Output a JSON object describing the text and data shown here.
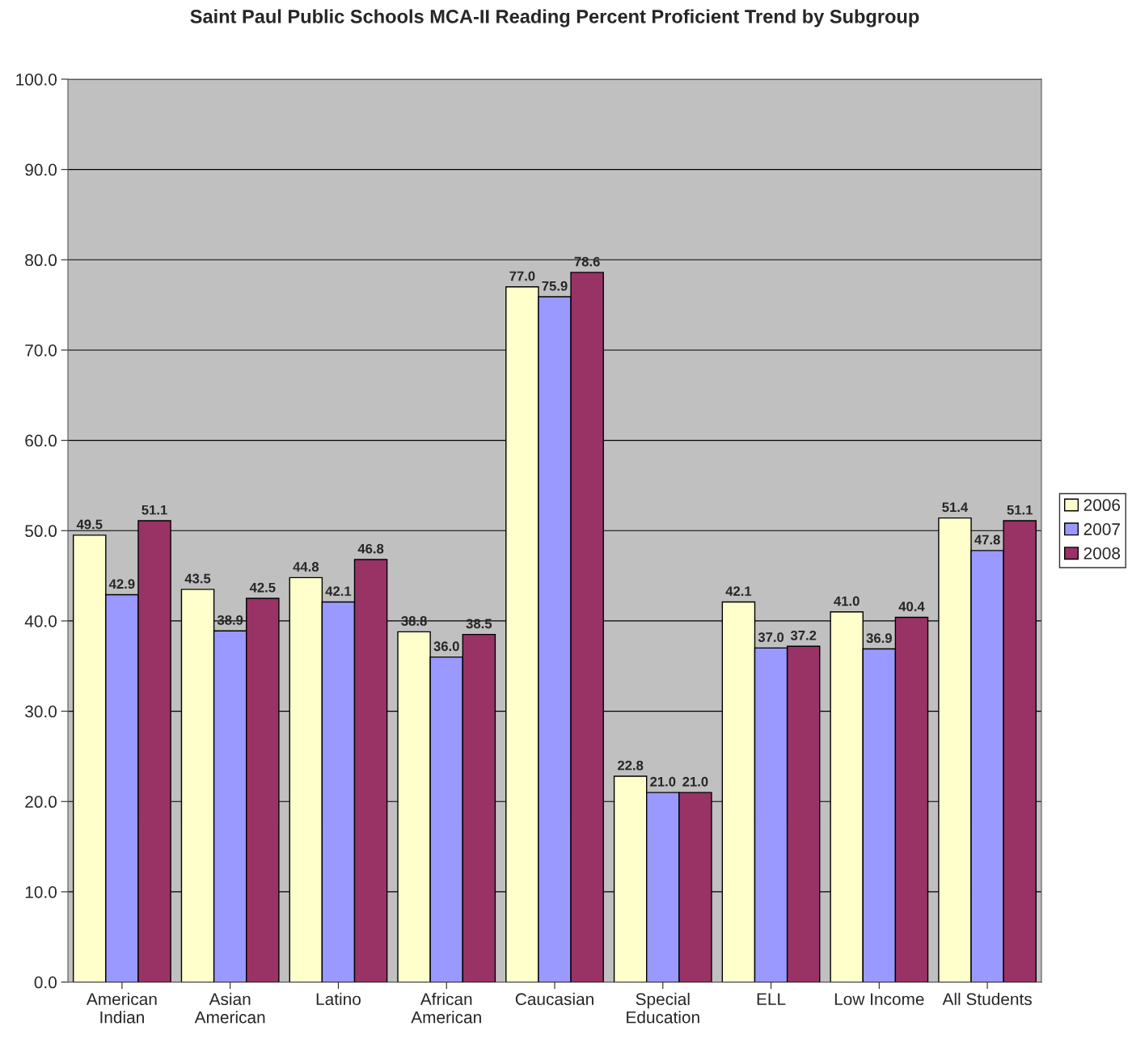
{
  "chart_data": {
    "type": "bar",
    "title": "Saint Paul Public Schools MCA-II Reading Percent Proficient Trend by Subgroup",
    "categories": [
      "American\nIndian",
      "Asian\nAmerican",
      "Latino",
      "African\nAmerican",
      "Caucasian",
      "Special\nEducation",
      "ELL",
      "Low Income",
      "All Students"
    ],
    "series": [
      {
        "name": "2006",
        "color": "#ffffcc",
        "values": [
          49.5,
          43.5,
          44.8,
          38.8,
          77.0,
          22.8,
          42.1,
          41.0,
          51.4
        ],
        "value_labels": [
          "49.5",
          "43.5",
          "44.8",
          "38.8",
          "77.0",
          "22.8",
          "42.1",
          "41.0",
          "51.4"
        ]
      },
      {
        "name": "2007",
        "color": "#9999ff",
        "values": [
          42.9,
          38.9,
          42.1,
          36.0,
          75.9,
          21.0,
          37.0,
          36.9,
          47.8
        ],
        "value_labels": [
          "42.9",
          "38.9",
          "42.1",
          "36.0",
          "75.9",
          "21.0",
          "37.0",
          "36.9",
          "47.8"
        ]
      },
      {
        "name": "2008",
        "color": "#993366",
        "values": [
          51.1,
          42.5,
          46.8,
          38.5,
          78.6,
          21.0,
          37.2,
          40.4,
          51.1
        ],
        "value_labels": [
          "51.1",
          "42.5",
          "46.8",
          "38.5",
          "78.6",
          "21.0",
          "37.2",
          "40.4",
          "51.1"
        ]
      }
    ],
    "ylim": [
      0,
      100
    ],
    "yticks": [
      {
        "value": 0,
        "label": "0.0"
      },
      {
        "value": 10,
        "label": "10.0"
      },
      {
        "value": 20,
        "label": "20.0"
      },
      {
        "value": 30,
        "label": "30.0"
      },
      {
        "value": 40,
        "label": "40.0"
      },
      {
        "value": 50,
        "label": "50.0"
      },
      {
        "value": 60,
        "label": "60.0"
      },
      {
        "value": 70,
        "label": "70.0"
      },
      {
        "value": 80,
        "label": "80.0"
      },
      {
        "value": 90,
        "label": "90.0"
      },
      {
        "value": 100,
        "label": "100.0"
      }
    ],
    "grid": "y",
    "legend": "right"
  }
}
